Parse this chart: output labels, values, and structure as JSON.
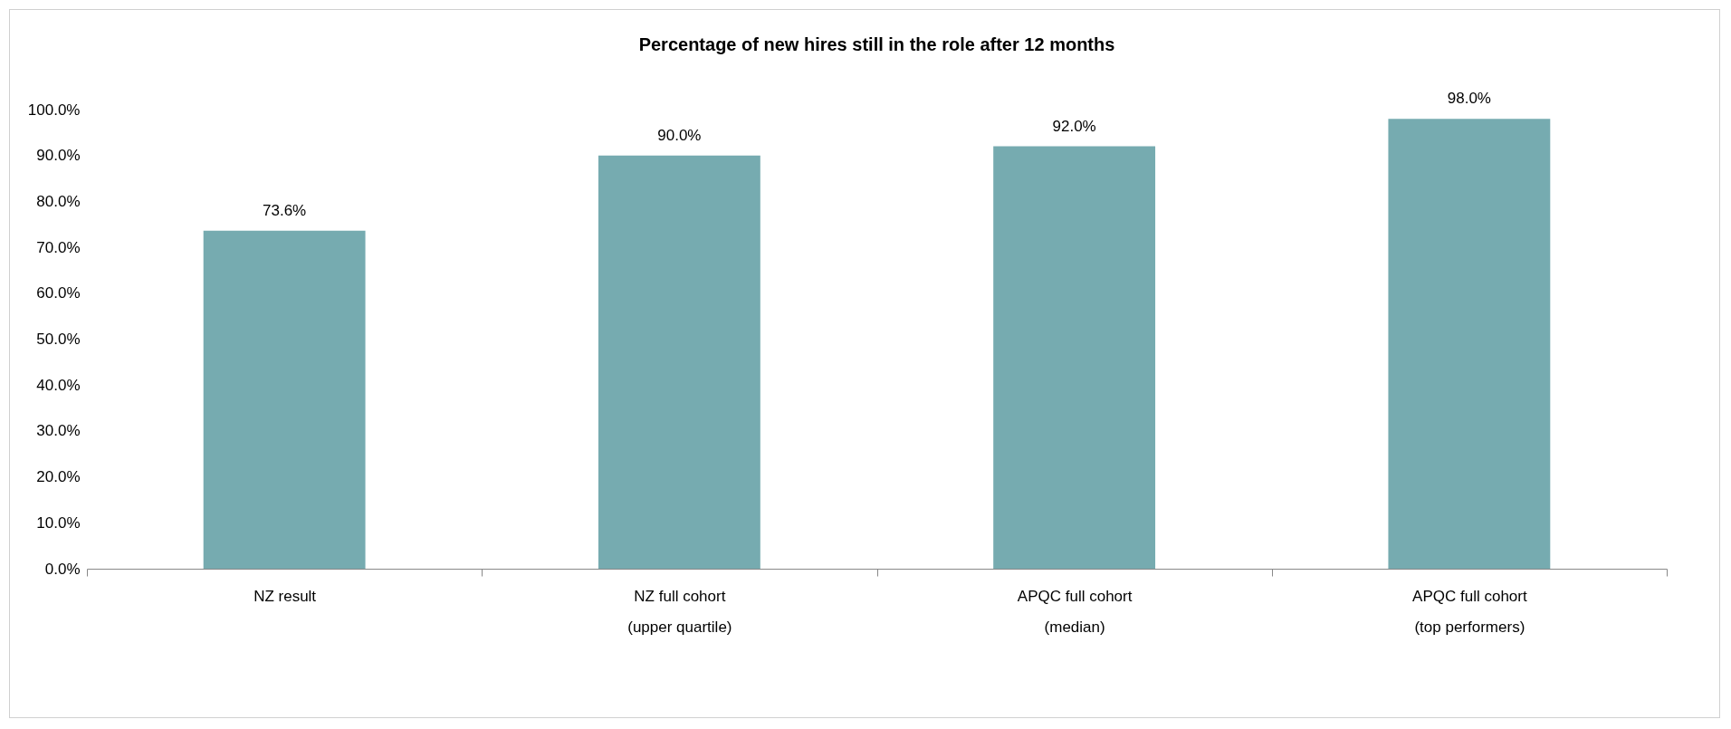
{
  "chart_data": {
    "type": "bar",
    "title": "Percentage of new hires still in the role after 12 months",
    "categories": [
      "NZ result",
      "NZ full cohort (upper quartile)",
      "APQC full cohort (median)",
      "APQC full cohort (top performers)"
    ],
    "values": [
      73.6,
      90.0,
      92.0,
      98.0
    ],
    "value_labels": [
      "73.6%",
      "90.0%",
      "92.0%",
      "98.0%"
    ],
    "color": "#76abb0",
    "ylim": [
      0,
      100
    ],
    "yticks": [
      {
        "value": 0,
        "label": "0.0%"
      },
      {
        "value": 10,
        "label": "10.0%"
      },
      {
        "value": 20,
        "label": "20.0%"
      },
      {
        "value": 30,
        "label": "30.0%"
      },
      {
        "value": 40,
        "label": "40.0%"
      },
      {
        "value": 50,
        "label": "50.0%"
      },
      {
        "value": 60,
        "label": "60.0%"
      },
      {
        "value": 70,
        "label": "70.0%"
      },
      {
        "value": 80,
        "label": "80.0%"
      },
      {
        "value": 90,
        "label": "90.0%"
      },
      {
        "value": 100,
        "label": "100.0%"
      }
    ],
    "grid": false
  }
}
